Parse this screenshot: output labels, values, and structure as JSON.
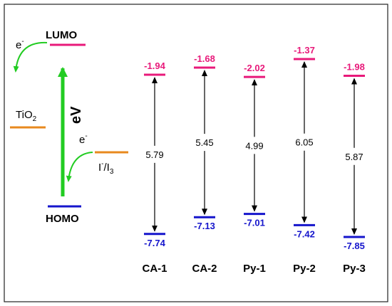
{
  "colors": {
    "lumo": "#e8197a",
    "homo": "#1515cc",
    "tio2": "#e8891e",
    "redox": "#e8891e",
    "green_arrow": "#22cc22",
    "black": "#000000",
    "border": "#222222"
  },
  "legend": {
    "lumo_label": "LUMO",
    "homo_label": "HOMO",
    "ev_label": "eV",
    "electron_left": "e",
    "electron_left_sup": "-",
    "electron_right": "e",
    "electron_right_sup": "-",
    "tio2_main": "TiO",
    "tio2_sub": "2",
    "redox_I": "I",
    "redox_sup": "-",
    "redox_slash_I": "/I",
    "redox_sub": "3"
  },
  "dyes": [
    {
      "name": "CA-1",
      "lumo": "-1.94",
      "homo": "-7.74",
      "gap": "5.79"
    },
    {
      "name": "CA-2",
      "lumo": "-1.68",
      "homo": "-7.13",
      "gap": "5.45"
    },
    {
      "name": "Py-1",
      "lumo": "-2.02",
      "homo": "-7.01",
      "gap": "4.99"
    },
    {
      "name": "Py-2",
      "lumo": "-1.37",
      "homo": "-7.42",
      "gap": "6.05"
    },
    {
      "name": "Py-3",
      "lumo": "-1.98",
      "homo": "-7.85",
      "gap": "5.87"
    }
  ]
}
